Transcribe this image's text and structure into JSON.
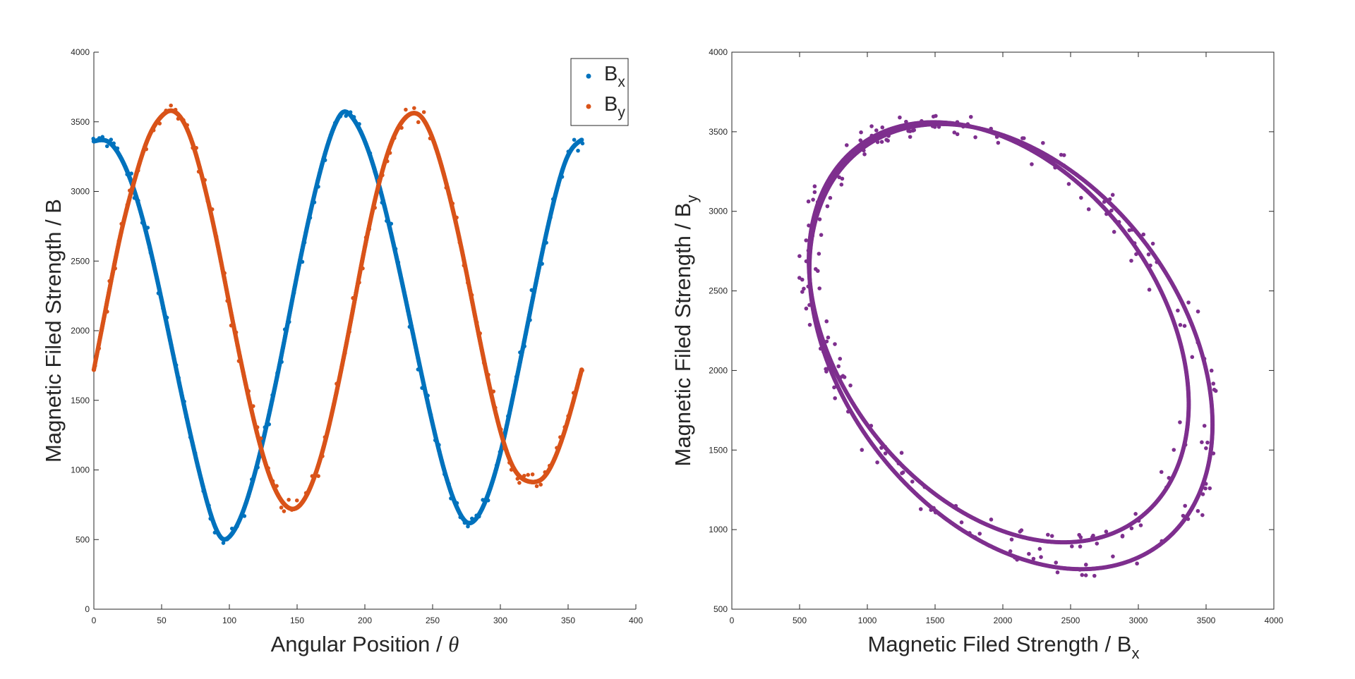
{
  "colors": {
    "bx": "#0072BD",
    "by": "#D95319",
    "loop": "#7E2F8E",
    "axis": "#262626"
  },
  "left_axes": {
    "xlabel_prefix": "Angular Position / ",
    "xlabel_symbol": "θ",
    "ylabel": "Magnetic Filed Strength / B",
    "legend": [
      {
        "base": "B",
        "sub": "x",
        "key": "bx"
      },
      {
        "base": "B",
        "sub": "y",
        "key": "by"
      }
    ]
  },
  "right_axes": {
    "xlabel_base": "Magnetic Filed Strength / B",
    "xlabel_sub": "x",
    "ylabel_base": "Magnetic Filed Strength / B",
    "ylabel_sub": "y"
  },
  "chart_data": [
    {
      "type": "scatter",
      "xlim": [
        0,
        400
      ],
      "ylim": [
        0,
        4000
      ],
      "xticks": [
        0,
        50,
        100,
        150,
        200,
        250,
        300,
        350,
        400
      ],
      "yticks": [
        0,
        500,
        1000,
        1500,
        2000,
        2500,
        3000,
        3500,
        4000
      ],
      "legend_position": "top-right",
      "series": [
        {
          "name": "Bx",
          "color_key": "bx",
          "x": [
            0,
            10,
            20,
            30,
            40,
            50,
            60,
            70,
            80,
            90,
            95,
            100,
            110,
            120,
            130,
            140,
            150,
            160,
            170,
            180,
            184,
            190,
            200,
            210,
            220,
            230,
            240,
            250,
            260,
            270,
            276,
            280,
            290,
            300,
            310,
            320,
            330,
            340,
            350,
            360
          ],
          "y": [
            3360,
            3360,
            3240,
            3000,
            2650,
            2220,
            1760,
            1310,
            900,
            580,
            505,
            520,
            700,
            1020,
            1430,
            1900,
            2400,
            2860,
            3250,
            3520,
            3570,
            3540,
            3360,
            3060,
            2670,
            2230,
            1770,
            1330,
            950,
            690,
            620,
            630,
            800,
            1120,
            1560,
            2040,
            2520,
            2950,
            3260,
            3370
          ]
        },
        {
          "name": "By",
          "color_key": "by",
          "x": [
            0,
            10,
            20,
            30,
            40,
            50,
            57,
            60,
            70,
            80,
            90,
            100,
            110,
            120,
            130,
            140,
            147,
            150,
            160,
            170,
            180,
            190,
            200,
            210,
            220,
            230,
            238,
            240,
            250,
            260,
            270,
            280,
            290,
            300,
            310,
            320,
            328,
            330,
            340,
            350,
            360
          ],
          "y": [
            1720,
            2220,
            2700,
            3080,
            3380,
            3540,
            3580,
            3570,
            3420,
            3100,
            2680,
            2190,
            1710,
            1280,
            950,
            760,
            720,
            730,
            880,
            1180,
            1600,
            2090,
            2600,
            3040,
            3360,
            3530,
            3560,
            3550,
            3380,
            3060,
            2650,
            2170,
            1690,
            1280,
            1010,
            920,
            920,
            930,
            1080,
            1360,
            1720
          ]
        }
      ]
    },
    {
      "type": "scatter",
      "xlim": [
        0,
        4000
      ],
      "ylim": [
        500,
        4000
      ],
      "xticks": [
        0,
        500,
        1000,
        1500,
        2000,
        2500,
        3000,
        3500,
        4000
      ],
      "yticks": [
        500,
        1000,
        1500,
        2000,
        2500,
        3000,
        3500,
        4000
      ],
      "series": [
        {
          "name": "",
          "color_key": "loop",
          "loops": [
            {
              "center": [
                2060,
                2150
              ],
              "semi_major": 1680,
              "semi_minor": 1160,
              "tilt_deg": -40
            },
            {
              "center": [
                1970,
                2240
              ],
              "semi_major": 1580,
              "semi_minor": 1100,
              "tilt_deg": -40
            }
          ]
        }
      ]
    }
  ]
}
